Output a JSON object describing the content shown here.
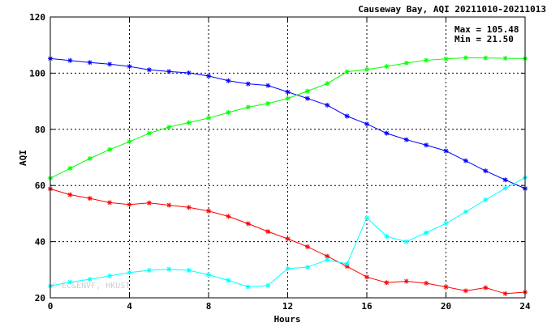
{
  "chart_data": {
    "type": "line",
    "title": "Causeway Bay, AQI 20211010-20211013",
    "xlabel": "Hours",
    "ylabel": "AQI",
    "xlim": [
      0,
      24
    ],
    "ylim": [
      20,
      120
    ],
    "xticks": [
      0,
      4,
      8,
      12,
      16,
      20,
      24
    ],
    "yticks": [
      20,
      40,
      60,
      80,
      100,
      120
    ],
    "grid": true,
    "x": [
      0,
      1,
      2,
      3,
      4,
      5,
      6,
      7,
      8,
      9,
      10,
      11,
      12,
      13,
      14,
      15,
      16,
      17,
      18,
      19,
      20,
      21,
      22,
      23,
      24
    ],
    "stats": {
      "max_label": "Max = 105.48",
      "min_label": "Min =  21.50"
    },
    "watermark": "© EC&ENVF, HKUST",
    "series": [
      {
        "color": "#0000ff",
        "values": [
          105.2,
          104.5,
          103.8,
          103.2,
          102.4,
          101.2,
          100.6,
          100.1,
          99.0,
          97.3,
          96.2,
          95.6,
          93.3,
          91.0,
          88.6,
          84.7,
          81.9,
          78.6,
          76.3,
          74.4,
          72.3,
          68.8,
          65.2,
          62.0,
          58.9
        ]
      },
      {
        "color": "#00ff00",
        "values": [
          62.6,
          66.1,
          69.6,
          72.8,
          75.6,
          78.6,
          80.8,
          82.4,
          84.0,
          86.0,
          87.9,
          89.2,
          91.0,
          93.6,
          96.3,
          100.5,
          101.3,
          102.4,
          103.6,
          104.6,
          105.1,
          105.48,
          105.4,
          105.3,
          105.2
        ]
      },
      {
        "color": "#ff0000",
        "values": [
          58.8,
          56.7,
          55.4,
          53.9,
          53.2,
          53.8,
          53.0,
          52.2,
          50.9,
          49.0,
          46.4,
          43.6,
          41.0,
          38.2,
          34.8,
          31.2,
          27.4,
          25.4,
          25.9,
          25.2,
          23.9,
          22.5,
          23.6,
          21.5,
          22.0
        ]
      },
      {
        "color": "#00ffff",
        "values": [
          24.2,
          25.6,
          26.6,
          27.8,
          29.0,
          29.8,
          30.2,
          29.8,
          28.2,
          26.2,
          23.9,
          24.4,
          30.4,
          30.9,
          33.5,
          32.1,
          48.5,
          41.9,
          40.0,
          43.2,
          46.5,
          50.6,
          54.9,
          59.0,
          62.8
        ]
      }
    ]
  }
}
